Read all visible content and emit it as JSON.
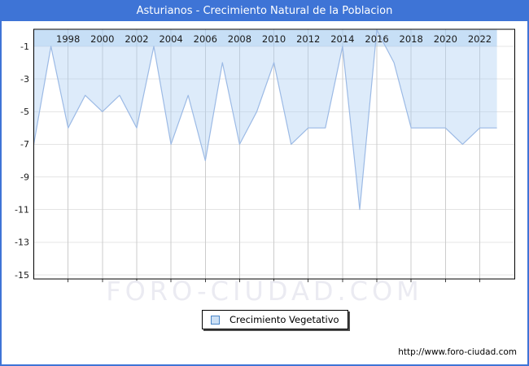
{
  "window": {
    "title": "Asturianos - Crecimiento Natural de la Poblacion"
  },
  "chart_data": {
    "type": "area",
    "title": "Asturianos - Crecimiento Natural de la Poblacion",
    "x": [
      1996,
      1997,
      1998,
      1999,
      2000,
      2001,
      2002,
      2003,
      2004,
      2005,
      2006,
      2007,
      2008,
      2009,
      2010,
      2011,
      2012,
      2013,
      2014,
      2015,
      2016,
      2017,
      2018,
      2019,
      2020,
      2021,
      2022,
      2023
    ],
    "series": [
      {
        "name": "Crecimiento Vegetativo",
        "values": [
          -7,
          -1,
          -6,
          -4,
          -5,
          -4,
          -6,
          -1,
          -7,
          -4,
          -8,
          -2,
          -7,
          -5,
          -2,
          -7,
          -6,
          -6,
          -1,
          -11,
          0,
          -2,
          -6,
          -6,
          -6,
          -7,
          -6,
          -6
        ]
      }
    ],
    "x_ticks": [
      1998,
      2000,
      2002,
      2004,
      2006,
      2008,
      2010,
      2012,
      2014,
      2016,
      2018,
      2020,
      2022
    ],
    "y_ticks": [
      -1,
      -3,
      -5,
      -7,
      -9,
      -11,
      -13,
      -15
    ],
    "xlim": [
      1996,
      2024
    ],
    "ylim": [
      -15.3,
      0
    ],
    "grid": true,
    "xlabel": "",
    "ylabel": "",
    "legend_position": "below-plot-center"
  },
  "legend": {
    "label": "Crecimiento Vegetativo"
  },
  "watermark": "FORO-CIUDAD.COM",
  "footer_url": "http://www.foro-ciudad.com",
  "colors": {
    "titlebar": "#3E74D6",
    "line": "#9cbae5",
    "area_fill": "rgba(174,207,243,0.42)",
    "xaxis_band": "rgba(158,199,238,0.38)",
    "grid_vertical": "#cccccc",
    "grid_horizontal": "#e4e4e4",
    "plot_border": "#000000",
    "tick": "#444444",
    "axis_text": "#1a1a1a",
    "watermark": "#ebebf2",
    "legend_swatch_fill": "#cce0f5",
    "legend_swatch_border": "#4a86c8"
  }
}
